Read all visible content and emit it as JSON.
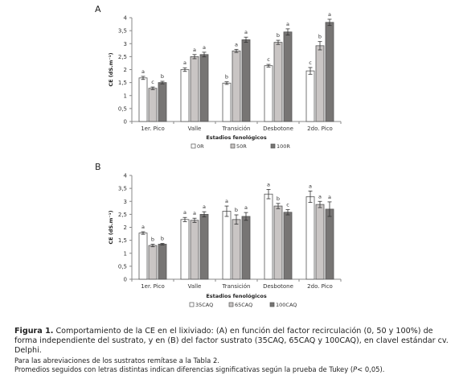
{
  "caption": {
    "label": "Figura 1.",
    "text": " Comportamiento de la CE en el lixiviado: (A) en función del factor recirculación (0, 50 y 100%) de forma independiente del sustrato, y en (B) del factor sustrato (35CAQ, 65CAQ y 100CAQ), en clavel estándar cv. Delphi.",
    "note1": "Para las abreviaciones de los sustratos remítase a la Tabla 2.",
    "note2_a": "Promedios seguidos con letras distintas indican diferencias significativas según la prueba de Tukey (",
    "note2_p": "P",
    "note2_b": "< 0,05)."
  },
  "chart_data": [
    {
      "panel": "A",
      "type": "bar",
      "ylabel": "CE (dS.m⁻¹)",
      "xlabel": "Estadios fenológicos",
      "ylim": [
        0,
        4
      ],
      "yticks": [
        "0",
        "0,5",
        "1",
        "1,5",
        "2",
        "2,5",
        "3",
        "3,5",
        "4"
      ],
      "grid": false,
      "legend_position": "bottom",
      "categories": [
        "1er. Pico",
        "Valle",
        "Transición",
        "Desbotone",
        "2do. Pico"
      ],
      "series": [
        {
          "name": "0R",
          "color": "#ffffff",
          "values": [
            1.68,
            2.0,
            1.48,
            2.15,
            1.95
          ],
          "errors": [
            0.06,
            0.07,
            0.05,
            0.05,
            0.13
          ],
          "letters": [
            "a",
            "a",
            "b",
            "c",
            "c"
          ]
        },
        {
          "name": "50R",
          "color": "#c9c5c4",
          "values": [
            1.28,
            2.5,
            2.72,
            3.05,
            2.92
          ],
          "errors": [
            0.05,
            0.08,
            0.06,
            0.08,
            0.16
          ],
          "letters": [
            "c",
            "a",
            "a",
            "b",
            "b"
          ]
        },
        {
          "name": "100R",
          "color": "#777574",
          "values": [
            1.5,
            2.58,
            3.15,
            3.45,
            3.82
          ],
          "errors": [
            0.05,
            0.09,
            0.1,
            0.12,
            0.12
          ],
          "letters": [
            "b",
            "a",
            "a",
            "a",
            "a"
          ]
        }
      ]
    },
    {
      "panel": "B",
      "type": "bar",
      "ylabel": "CE (dS.m⁻¹)",
      "xlabel": "Estadios fenológicos",
      "ylim": [
        0,
        4
      ],
      "yticks": [
        "0",
        "0,5",
        "1",
        "1,5",
        "2",
        "2,5",
        "3",
        "3,5",
        "4"
      ],
      "grid": false,
      "legend_position": "bottom",
      "categories": [
        "1er. Pico",
        "Valle",
        "Transición",
        "Desbotone",
        "2do. Pico"
      ],
      "series": [
        {
          "name": "35CAQ",
          "color": "#ffffff",
          "values": [
            1.78,
            2.3,
            2.62,
            3.28,
            3.18
          ],
          "errors": [
            0.05,
            0.08,
            0.2,
            0.18,
            0.22
          ],
          "letters": [
            "a",
            "a",
            "a",
            "a",
            "a"
          ]
        },
        {
          "name": "65CAQ",
          "color": "#c9c5c4",
          "values": [
            1.3,
            2.27,
            2.3,
            2.82,
            2.88
          ],
          "errors": [
            0.05,
            0.08,
            0.18,
            0.1,
            0.12
          ],
          "letters": [
            "b",
            "a",
            "b",
            "b",
            "a"
          ]
        },
        {
          "name": "100CAQ",
          "color": "#777574",
          "values": [
            1.35,
            2.5,
            2.42,
            2.58,
            2.7
          ],
          "errors": [
            0.03,
            0.1,
            0.15,
            0.1,
            0.28
          ],
          "letters": [
            "b",
            "a",
            "a",
            "c",
            "a"
          ]
        }
      ]
    }
  ]
}
